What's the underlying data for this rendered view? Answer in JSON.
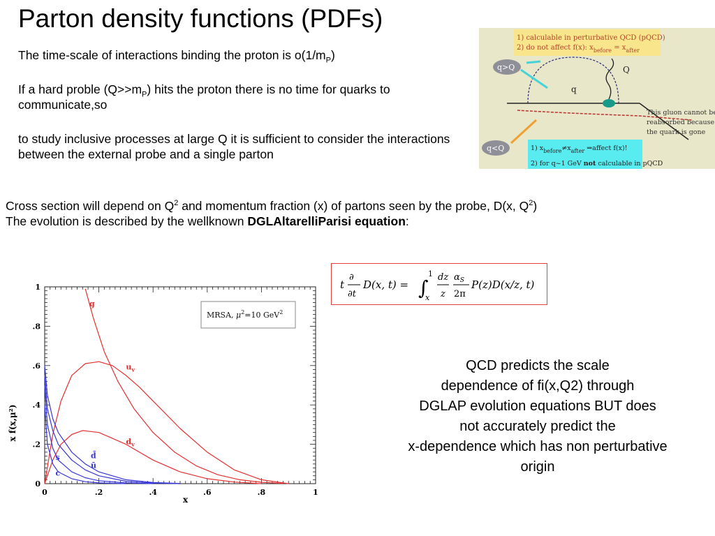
{
  "title": "Parton density functions (PDFs)",
  "intro": {
    "p1_a": "The time-scale of interactions binding the proton is o(1/m",
    "p1_sub": "P",
    "p1_b": ")",
    "p2_a": "If a hard proble (Q>>m",
    "p2_sub": "P",
    "p2_b": ") hits the proton there is no time for quarks to communicate,so",
    "p3": "to study inclusive processes at large Q it is sufficient to consider the interactions between the external probe and a single parton"
  },
  "cross": {
    "line1_a": "Cross section will depend on Q",
    "line1_sup1": "2",
    "line1_b": " and momentum fraction (x) of partons seen by the probe, D(x, Q",
    "line1_sup2": "2",
    "line1_c": ")",
    "line2_a": "The evolution is described by the wellknown  ",
    "line2_bold": "DGLAltarelliParisi equation",
    "line2_c": ":"
  },
  "figure": {
    "note1": "1) calculable in perturbative QCD (pQCD)",
    "note2": "2) do not affect f(x): x",
    "note2_sub1": "before",
    "note2_mid": " = x",
    "note2_sub2": "after",
    "qgtQ": "q>Q",
    "qltQ": "q<Q",
    "Q": "Q",
    "q": "q",
    "gluon_a": "This gluon cannot be",
    "gluon_b": "reabsorbed because",
    "gluon_c": "the quark is gone",
    "bot1_a": "1) x",
    "bot1_sub1": "before",
    "bot1_mid": "≠x",
    "bot1_sub2": "after",
    "bot1_b": " ⇒affect f(x)!",
    "bot2_a": "2) for q~1 GeV ",
    "bot2_bold": "not",
    "bot2_b": " calculable in pQCD"
  },
  "equation": {
    "t": "t",
    "partial": "∂",
    "dt": "∂t",
    "lhs": "D(x, t) =",
    "int_upper": "1",
    "int_lower": "x",
    "dz": "dz",
    "z": "z",
    "alpha": "α",
    "alpha_sub": "S",
    "twopi": "2π",
    "rhs": "P(z)D(x/z, t)"
  },
  "predict": [
    "QCD  predicts the scale",
    "dependence of fi(x,Q2) through",
    "DGLAP evolution equations  BUT does",
    "not accurately predict the",
    "x-dependence which has non perturbative",
    "origin"
  ],
  "chart_data": {
    "type": "line",
    "xlabel": "x",
    "ylabel": "x f(x,μ²)",
    "xlim": [
      0,
      1
    ],
    "ylim": [
      0,
      1
    ],
    "x_ticks": [
      "0",
      ".2",
      ".4",
      ".6",
      ".8",
      "1"
    ],
    "y_ticks": [
      "0",
      ".2",
      ".4",
      ".6",
      ".8",
      "1"
    ],
    "legend": "MRSA,  μ²=10  GeV²",
    "legend_parts": {
      "a": "MRSA,  ",
      "mu": "μ",
      "b": "=10  GeV"
    },
    "legend_sup": "2",
    "series": [
      {
        "name": "g",
        "color": "#e53030",
        "x": [
          0.15,
          0.18,
          0.22,
          0.27,
          0.33,
          0.4,
          0.48,
          0.56,
          0.64,
          0.72,
          0.8,
          0.88
        ],
        "y": [
          0.99,
          0.84,
          0.67,
          0.52,
          0.38,
          0.26,
          0.16,
          0.09,
          0.045,
          0.02,
          0.007,
          0.001
        ]
      },
      {
        "name": "u_v",
        "color": "#e53030",
        "x": [
          0,
          0.03,
          0.06,
          0.1,
          0.15,
          0.2,
          0.25,
          0.3,
          0.35,
          0.4,
          0.5,
          0.6,
          0.7,
          0.8,
          0.9
        ],
        "y": [
          0.0,
          0.25,
          0.42,
          0.55,
          0.61,
          0.62,
          0.6,
          0.55,
          0.49,
          0.42,
          0.28,
          0.16,
          0.07,
          0.02,
          0.0
        ]
      },
      {
        "name": "d_v",
        "color": "#e53030",
        "x": [
          0,
          0.03,
          0.06,
          0.1,
          0.14,
          0.2,
          0.25,
          0.3,
          0.4,
          0.5,
          0.6,
          0.7,
          0.8
        ],
        "y": [
          0.0,
          0.12,
          0.2,
          0.25,
          0.27,
          0.26,
          0.23,
          0.2,
          0.12,
          0.06,
          0.025,
          0.008,
          0.0
        ]
      },
      {
        "name": "d̄",
        "color": "#3535d8",
        "x": [
          0.0,
          0.01,
          0.03,
          0.05,
          0.1,
          0.15,
          0.2,
          0.3,
          0.4,
          0.5
        ],
        "y": [
          0.6,
          0.45,
          0.33,
          0.26,
          0.16,
          0.1,
          0.06,
          0.02,
          0.006,
          0.001
        ]
      },
      {
        "name": "ū",
        "color": "#3535d8",
        "x": [
          0.0,
          0.01,
          0.03,
          0.05,
          0.1,
          0.15,
          0.2,
          0.3,
          0.4,
          0.5
        ],
        "y": [
          0.55,
          0.38,
          0.27,
          0.2,
          0.12,
          0.07,
          0.04,
          0.012,
          0.003,
          0.0
        ]
      },
      {
        "name": "s",
        "color": "#3535d8",
        "x": [
          0.0,
          0.01,
          0.03,
          0.05,
          0.1,
          0.15,
          0.2,
          0.3,
          0.4
        ],
        "y": [
          0.5,
          0.3,
          0.18,
          0.12,
          0.06,
          0.03,
          0.015,
          0.004,
          0.0
        ]
      },
      {
        "name": "c",
        "color": "#3535d8",
        "x": [
          0.0,
          0.01,
          0.03,
          0.05,
          0.1,
          0.15,
          0.2,
          0.3
        ],
        "y": [
          0.4,
          0.2,
          0.1,
          0.06,
          0.025,
          0.01,
          0.004,
          0.0
        ]
      }
    ],
    "labels": {
      "g": "g",
      "u_v": "u",
      "u_v_sub": "v",
      "d_v": "d",
      "d_v_sub": "v",
      "dbar": "d̄",
      "ubar": "ū",
      "s": "s",
      "c": "c"
    }
  }
}
